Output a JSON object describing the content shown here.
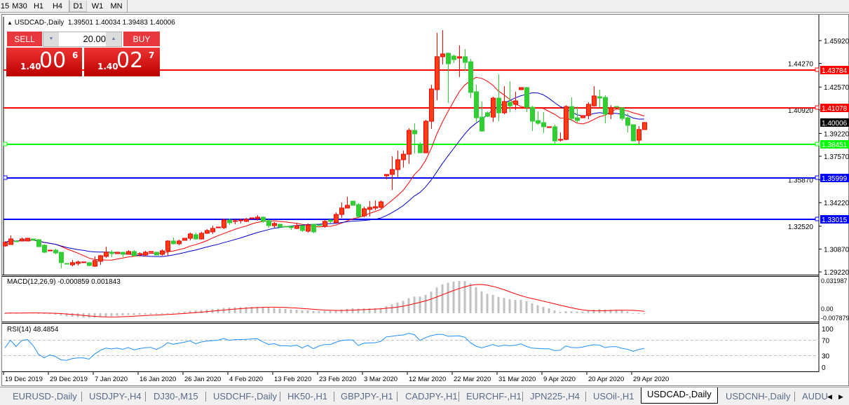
{
  "timeframes": [
    {
      "label": "15"
    },
    {
      "label": "M30"
    },
    {
      "label": "H1"
    },
    {
      "label": "H4"
    },
    {
      "label": "D1",
      "active": true
    },
    {
      "label": "W1"
    },
    {
      "label": "MN"
    }
  ],
  "chart": {
    "symbol_title": "USDCAD-,Daily",
    "ohlc": "1.39501 1.40034 1.39483 1.40006",
    "current_price": "1.40006",
    "price_ticks": [
      "1.45920",
      "1.44270",
      "1.42570",
      "1.40920",
      "1.39220",
      "1.37570",
      "1.35870",
      "1.34220",
      "1.32520",
      "1.30870",
      "1.29220"
    ],
    "date_labels": [
      "19 Dec 2019",
      "29 Dec 2019",
      "7 Jan 2020",
      "16 Jan 2020",
      "26 Jan 2020",
      "4 Feb 2020",
      "13 Feb 2020",
      "23 Feb 2020",
      "3 Mar 2020",
      "12 Mar 2020",
      "22 Mar 2020",
      "31 Mar 2020",
      "9 Apr 2020",
      "20 Apr 2020",
      "29 Apr 2020"
    ],
    "hlines": [
      {
        "price": "1.43784",
        "color": "#ff0000"
      },
      {
        "price": "1.41078",
        "color": "#ff0000"
      },
      {
        "price": "1.38451",
        "color": "#00ff00"
      },
      {
        "price": "1.35999",
        "color": "#0000ff"
      },
      {
        "price": "1.33015",
        "color": "#0000ff"
      }
    ],
    "colors": {
      "bull": "#ff0000",
      "bull_fill": "#ff3c14",
      "bear": "#32cd32",
      "ma_fast": "#ff0000",
      "ma_slow": "#0000cd",
      "macd_hist": "#c0c0c0",
      "macd_signal": "#ff0000",
      "rsi": "#1e90ff"
    },
    "candles_ohlc": [
      [
        1.311,
        1.3145,
        1.3104,
        1.3135
      ],
      [
        1.312,
        1.3186,
        1.312,
        1.316
      ],
      [
        1.3145,
        1.315,
        1.314,
        1.314
      ],
      [
        1.3145,
        1.317,
        1.3145,
        1.316
      ],
      [
        1.3145,
        1.3165,
        1.3145,
        1.3165
      ],
      [
        1.316,
        1.316,
        1.315,
        1.315
      ],
      [
        1.3155,
        1.3155,
        1.3104,
        1.3104
      ],
      [
        1.3115,
        1.312,
        1.3059,
        1.3064
      ],
      [
        1.3074,
        1.3079,
        1.3074,
        1.3079
      ],
      [
        1.3079,
        1.3089,
        1.3049,
        1.3059
      ],
      [
        1.3064,
        1.3064,
        1.2948,
        1.2989
      ],
      [
        1.2983,
        1.2983,
        1.2978,
        1.2978
      ],
      [
        1.2973,
        1.3009,
        1.2963,
        1.2989
      ],
      [
        1.2983,
        1.3004,
        1.2968,
        1.2994
      ],
      [
        1.2989,
        1.2994,
        1.2989,
        1.2994
      ],
      [
        1.2989,
        1.2994,
        1.2963,
        1.2968
      ],
      [
        1.2963,
        1.3034,
        1.2958,
        1.3004
      ],
      [
        1.2999,
        1.3044,
        1.2973,
        1.3039
      ],
      [
        1.3034,
        1.3104,
        1.3024,
        1.3064
      ],
      [
        1.3064,
        1.3079,
        1.3029,
        1.3054
      ],
      [
        1.3054,
        1.3064,
        1.3054,
        1.3064
      ],
      [
        1.3064,
        1.3064,
        1.3029,
        1.3049
      ],
      [
        1.3049,
        1.3079,
        1.3049,
        1.3069
      ],
      [
        1.3069,
        1.3079,
        1.3034,
        1.3039
      ],
      [
        1.3049,
        1.3064,
        1.3034,
        1.3054
      ],
      [
        1.3044,
        1.3074,
        1.3034,
        1.3064
      ],
      [
        1.3064,
        1.3069,
        1.3064,
        1.3069
      ],
      [
        1.3064,
        1.3064,
        1.3044,
        1.3044
      ],
      [
        1.3049,
        1.3084,
        1.3039,
        1.3074
      ],
      [
        1.3074,
        1.315,
        1.3039,
        1.3145
      ],
      [
        1.3145,
        1.317,
        1.312,
        1.3125
      ],
      [
        1.3125,
        1.3155,
        1.3115,
        1.3145
      ],
      [
        1.315,
        1.3165,
        1.315,
        1.3165
      ],
      [
        1.3165,
        1.3206,
        1.315,
        1.3196
      ],
      [
        1.3191,
        1.3206,
        1.3155,
        1.316
      ],
      [
        1.316,
        1.3211,
        1.3155,
        1.3201
      ],
      [
        1.3201,
        1.3231,
        1.3196,
        1.3221
      ],
      [
        1.3211,
        1.3256,
        1.3196,
        1.3236
      ],
      [
        1.3241,
        1.3246,
        1.3241,
        1.3246
      ],
      [
        1.3241,
        1.3307,
        1.3231,
        1.3297
      ],
      [
        1.3297,
        1.3307,
        1.3261,
        1.3277
      ],
      [
        1.3287,
        1.3302,
        1.3266,
        1.3292
      ],
      [
        1.3292,
        1.3307,
        1.3272,
        1.3297
      ],
      [
        1.3287,
        1.3312,
        1.3282,
        1.3302
      ],
      [
        1.3307,
        1.3312,
        1.3307,
        1.3312
      ],
      [
        1.3307,
        1.3332,
        1.3292,
        1.3317
      ],
      [
        1.3317,
        1.3322,
        1.3277,
        1.3287
      ],
      [
        1.3292,
        1.3302,
        1.3241,
        1.3256
      ],
      [
        1.3256,
        1.3282,
        1.3241,
        1.3272
      ],
      [
        1.3266,
        1.3266,
        1.3241,
        1.3246
      ],
      [
        1.3251,
        1.3251,
        1.3246,
        1.3246
      ],
      [
        1.3251,
        1.3251,
        1.3226,
        1.3241
      ],
      [
        1.3236,
        1.3277,
        1.3231,
        1.3256
      ],
      [
        1.3256,
        1.3256,
        1.3211,
        1.3221
      ],
      [
        1.3216,
        1.3272,
        1.3206,
        1.3261
      ],
      [
        1.3266,
        1.3266,
        1.3201,
        1.3211
      ],
      [
        1.3261,
        1.3261,
        1.3256,
        1.3256
      ],
      [
        1.3251,
        1.3297,
        1.3241,
        1.3287
      ],
      [
        1.3297,
        1.3302,
        1.3272,
        1.3287
      ],
      [
        1.3277,
        1.3352,
        1.3277,
        1.3337
      ],
      [
        1.3337,
        1.3423,
        1.3312,
        1.3383
      ],
      [
        1.3383,
        1.3464,
        1.3383,
        1.3403
      ],
      [
        1.3433,
        1.3433,
        1.3403,
        1.3403
      ],
      [
        1.3408,
        1.3418,
        1.3317,
        1.3322
      ],
      [
        1.3327,
        1.3393,
        1.3317,
        1.3378
      ],
      [
        1.3373,
        1.3433,
        1.3322,
        1.3388
      ],
      [
        1.3383,
        1.3438,
        1.3368,
        1.3393
      ],
      [
        1.3388,
        1.3438,
        1.3378,
        1.3428
      ],
      [
        1.3616,
        1.3626,
        1.359,
        1.3626
      ],
      [
        1.3626,
        1.3757,
        1.3514,
        1.3661
      ],
      [
        1.3661,
        1.3798,
        1.3605,
        1.3732
      ],
      [
        1.3732,
        1.3798,
        1.3676,
        1.3772
      ],
      [
        1.3772,
        1.396,
        1.3702,
        1.3944
      ],
      [
        1.3944,
        1.3995,
        1.3777,
        1.3919
      ],
      [
        1.3843,
        1.3858,
        1.3782,
        1.3782
      ],
      [
        1.3782,
        1.402,
        1.3782,
        1.401
      ],
      [
        1.401,
        1.4273,
        1.3955,
        1.4243
      ],
      [
        1.4238,
        1.4648,
        1.4162,
        1.4476
      ],
      [
        1.4476,
        1.4668,
        1.442,
        1.4496
      ],
      [
        1.4501,
        1.4506,
        1.4142,
        1.4425
      ],
      [
        1.4481,
        1.4491,
        1.443,
        1.4455
      ],
      [
        1.4466,
        1.4557,
        1.4329,
        1.4476
      ],
      [
        1.4476,
        1.4531,
        1.4374,
        1.4435
      ],
      [
        1.444,
        1.446,
        1.4177,
        1.4218
      ],
      [
        1.4223,
        1.4273,
        1.4005,
        1.4035
      ],
      [
        1.404,
        1.4152,
        1.3934,
        1.3939
      ],
      [
        1.4071,
        1.4081,
        1.404,
        1.4045
      ],
      [
        1.404,
        1.4187,
        1.4005,
        1.4177
      ],
      [
        1.4177,
        1.4349,
        1.401,
        1.4071
      ],
      [
        1.4071,
        1.4263,
        1.4061,
        1.4152
      ],
      [
        1.4147,
        1.4299,
        1.4076,
        1.4121
      ],
      [
        1.4132,
        1.4223,
        1.4091,
        1.4157
      ],
      [
        1.4238,
        1.4253,
        1.4238,
        1.4253
      ],
      [
        1.4253,
        1.4258,
        1.4076,
        1.4111
      ],
      [
        1.4111,
        1.4121,
        1.3939,
        1.401
      ],
      [
        1.4015,
        1.4081,
        1.3985,
        1.3995
      ],
      [
        1.4,
        1.4076,
        1.3924,
        1.397
      ],
      [
        1.3965,
        1.397,
        1.3965,
        1.397
      ],
      [
        1.397,
        1.3985,
        1.3848,
        1.3868
      ],
      [
        1.3873,
        1.3929,
        1.3863,
        1.3879
      ],
      [
        1.3879,
        1.4126,
        1.3873,
        1.4116
      ],
      [
        1.4116,
        1.4182,
        1.401,
        1.403
      ],
      [
        1.4035,
        1.4116,
        1.4,
        1.4015
      ],
      [
        1.4035,
        1.4051,
        1.4035,
        1.4051
      ],
      [
        1.4051,
        1.4147,
        1.4025,
        1.4132
      ],
      [
        1.4121,
        1.4263,
        1.4116,
        1.4192
      ],
      [
        1.4187,
        1.4238,
        1.4111,
        1.4177
      ],
      [
        1.4182,
        1.4197,
        1.3995,
        1.4061
      ],
      [
        1.4061,
        1.4126,
        1.4025,
        1.4106
      ],
      [
        1.4116,
        1.4116,
        1.4111,
        1.4111
      ],
      [
        1.4106,
        1.4111,
        1.4015,
        1.403
      ],
      [
        1.4035,
        1.4066,
        1.3929,
        1.398
      ],
      [
        1.3985,
        1.3985,
        1.3868,
        1.3868
      ],
      [
        1.3873,
        1.3975,
        1.3843,
        1.395
      ],
      [
        1.39501,
        1.40034,
        1.39483,
        1.40006
      ]
    ]
  },
  "macd": {
    "label": "MACD(12,26,9) -0.000859 0.001843",
    "axis_top": "0.031987",
    "axis_zero": "0.00",
    "axis_bottom": "-0.007879"
  },
  "rsi": {
    "label": "RSI(14) 48.4854",
    "levels": [
      "100",
      "70",
      "30",
      "0"
    ]
  },
  "trade_panel": {
    "sell_label": "SELL",
    "buy_label": "BUY",
    "lot": "20.00",
    "sell_prefix": "1.40",
    "sell_big": "00",
    "sell_sup": "6",
    "buy_prefix": "1.40",
    "buy_big": "02",
    "buy_sup": "7"
  },
  "tabs": [
    {
      "label": "EURUSD-,Daily"
    },
    {
      "label": "USDJPY-,H4"
    },
    {
      "label": "DJ30-,M15"
    },
    {
      "label": "USDCHF-,Daily"
    },
    {
      "label": "HK50-,H1"
    },
    {
      "label": "GBPJPY-,H1"
    },
    {
      "label": "CADJPY-,H1"
    },
    {
      "label": "EURCHF-,H1"
    },
    {
      "label": "JPN225-,H4"
    },
    {
      "label": "USOil-,H1"
    },
    {
      "label": "USDCAD-,Daily",
      "active": true
    },
    {
      "label": "USDCNH-,Daily"
    },
    {
      "label": "AUDU"
    }
  ]
}
